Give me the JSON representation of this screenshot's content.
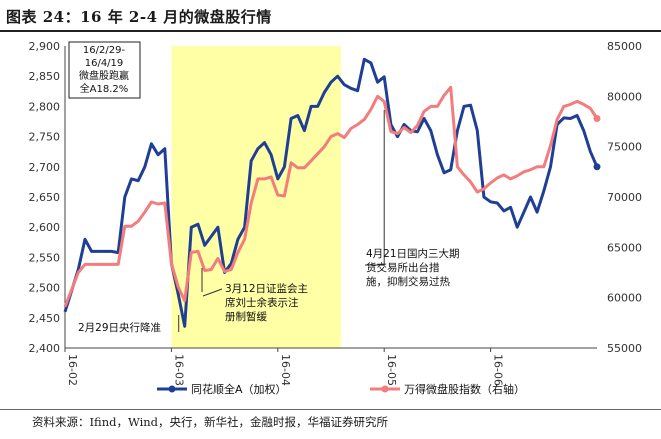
{
  "title": "图表 24：16 年 2-4 月的微盘股行情",
  "source": "资料来源：Ifind，Wind，央行，新华社，金融时报，华福证券研究所",
  "chart_data": {
    "type": "line",
    "x": [
      0,
      2,
      3,
      4,
      5,
      6,
      7,
      8,
      9,
      10,
      11,
      12,
      13,
      14,
      15,
      16,
      17,
      18,
      19,
      20,
      21,
      22,
      23,
      24,
      25,
      26,
      27,
      28,
      29,
      30,
      31,
      32,
      33,
      34,
      35,
      36,
      37,
      38,
      39,
      40,
      41,
      42,
      43,
      44,
      45,
      46,
      47,
      48,
      49,
      50,
      51,
      52,
      53,
      54,
      55,
      56,
      57,
      58,
      59,
      60,
      61,
      62,
      63,
      64,
      65,
      66,
      67,
      68,
      69,
      70,
      71,
      72,
      73,
      74,
      75,
      76,
      77,
      78,
      79,
      80
    ],
    "xticks": [
      {
        "label": "16-02",
        "x": 0
      },
      {
        "label": "16-03",
        "x": 16
      },
      {
        "label": "16-04",
        "x": 32
      },
      {
        "label": "16-05",
        "x": 48
      },
      {
        "label": "16-06",
        "x": 64
      }
    ],
    "xlim": [
      0,
      80
    ],
    "y_left": {
      "lim": [
        2400,
        2900
      ],
      "ticks": [
        "2,400",
        "2,450",
        "2,500",
        "2,550",
        "2,600",
        "2,650",
        "2,700",
        "2,750",
        "2,800",
        "2,850",
        "2,900"
      ]
    },
    "y_right": {
      "lim": [
        55000,
        85000
      ],
      "ticks": [
        "55000",
        "60000",
        "65000",
        "70000",
        "75000",
        "80000",
        "85000"
      ]
    },
    "series": [
      {
        "name": "同花顺全A（加权）",
        "axis": "left",
        "color": "#1f3f95",
        "values": [
          2460,
          2530,
          2580,
          2560,
          2560,
          2560,
          2560,
          2558,
          2650,
          2680,
          2677,
          2700,
          2738,
          2720,
          2730,
          2540,
          2490,
          2436,
          2600,
          2605,
          2570,
          2585,
          2600,
          2525,
          2540,
          2580,
          2600,
          2710,
          2730,
          2740,
          2720,
          2680,
          2700,
          2780,
          2785,
          2760,
          2800,
          2800,
          2823,
          2840,
          2850,
          2836,
          2830,
          2826,
          2878,
          2872,
          2840,
          2849,
          2770,
          2750,
          2770,
          2760,
          2758,
          2780,
          2760,
          2720,
          2690,
          2695,
          2760,
          2800,
          2802,
          2760,
          2650,
          2642,
          2640,
          2627,
          2633,
          2600,
          2625,
          2650,
          2625,
          2660,
          2700,
          2770,
          2781,
          2780,
          2785,
          2760,
          2725,
          2700
        ]
      },
      {
        "name": "万得微盘股指数（右轴）",
        "axis": "right",
        "color": "#f47c7c",
        "values": [
          59100,
          62500,
          63300,
          63300,
          63300,
          63300,
          63300,
          63300,
          67100,
          67100,
          67600,
          68500,
          69500,
          69300,
          69400,
          63400,
          61100,
          59700,
          64500,
          64600,
          62700,
          62800,
          63900,
          62600,
          62800,
          64500,
          65800,
          69400,
          71800,
          71800,
          72000,
          70200,
          70100,
          73400,
          72900,
          72900,
          73600,
          74300,
          75000,
          76000,
          76300,
          75900,
          76800,
          77200,
          77700,
          78700,
          80000,
          79500,
          76500,
          76300,
          76900,
          76400,
          77100,
          78500,
          79000,
          79000,
          80100,
          80900,
          73000,
          72200,
          71500,
          70500,
          70800,
          71400,
          71900,
          72200,
          71800,
          72100,
          72500,
          72700,
          73000,
          73000,
          75100,
          77700,
          79000,
          79200,
          79500,
          79200,
          78800,
          77800
        ]
      }
    ],
    "annotations": [
      {
        "text": "16/2/29-\n16/4/19\n微盘股跑赢\n全A18.2%"
      },
      {
        "text": "3月12日证监会主\n席刘士余表示注\n册制暂缓"
      },
      {
        "text": "2月29日央行降准"
      },
      {
        "text": "4月21日国内三大期\n货交易所出台措\n施，抑制交易过热"
      }
    ],
    "legend": [
      "同花顺全A（加权）",
      "万得微盘股指数（右轴）"
    ],
    "legend_position": "bottom",
    "highlight_range_x": [
      16,
      41.5
    ],
    "highlight_color": "#ffffa6"
  }
}
